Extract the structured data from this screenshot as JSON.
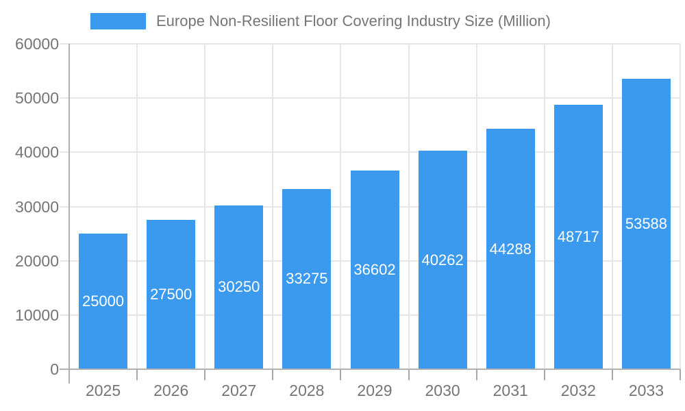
{
  "legend": {
    "label": "Europe Non-Resilient Floor Covering Industry Size (Million)"
  },
  "colors": {
    "bar": "#3b99ee",
    "bar_label_text": "#ffffff",
    "axis_text": "#757575",
    "gridline": "#e6e6e6",
    "axis_line": "#b0b0b0",
    "tick": "#a8a8a8"
  },
  "chart_data": {
    "type": "bar",
    "title": "Europe Non-Resilient Floor Covering Industry Size (Million)",
    "categories": [
      "2025",
      "2026",
      "2027",
      "2028",
      "2029",
      "2030",
      "2031",
      "2032",
      "2033"
    ],
    "values": [
      25000,
      27500,
      30250,
      33275,
      36602,
      40262,
      44288,
      48717,
      53588
    ],
    "bar_labels": [
      "25000",
      "27500",
      "30250",
      "33275",
      "36602",
      "40262",
      "44288",
      "48717",
      "53588"
    ],
    "xlabel": "",
    "ylabel": "",
    "ylim": [
      0,
      60000
    ],
    "ytick_interval": 10000,
    "ytick_labels": [
      "0",
      "10000",
      "20000",
      "30000",
      "40000",
      "50000",
      "60000"
    ],
    "grid": true,
    "legend_position": "top"
  }
}
